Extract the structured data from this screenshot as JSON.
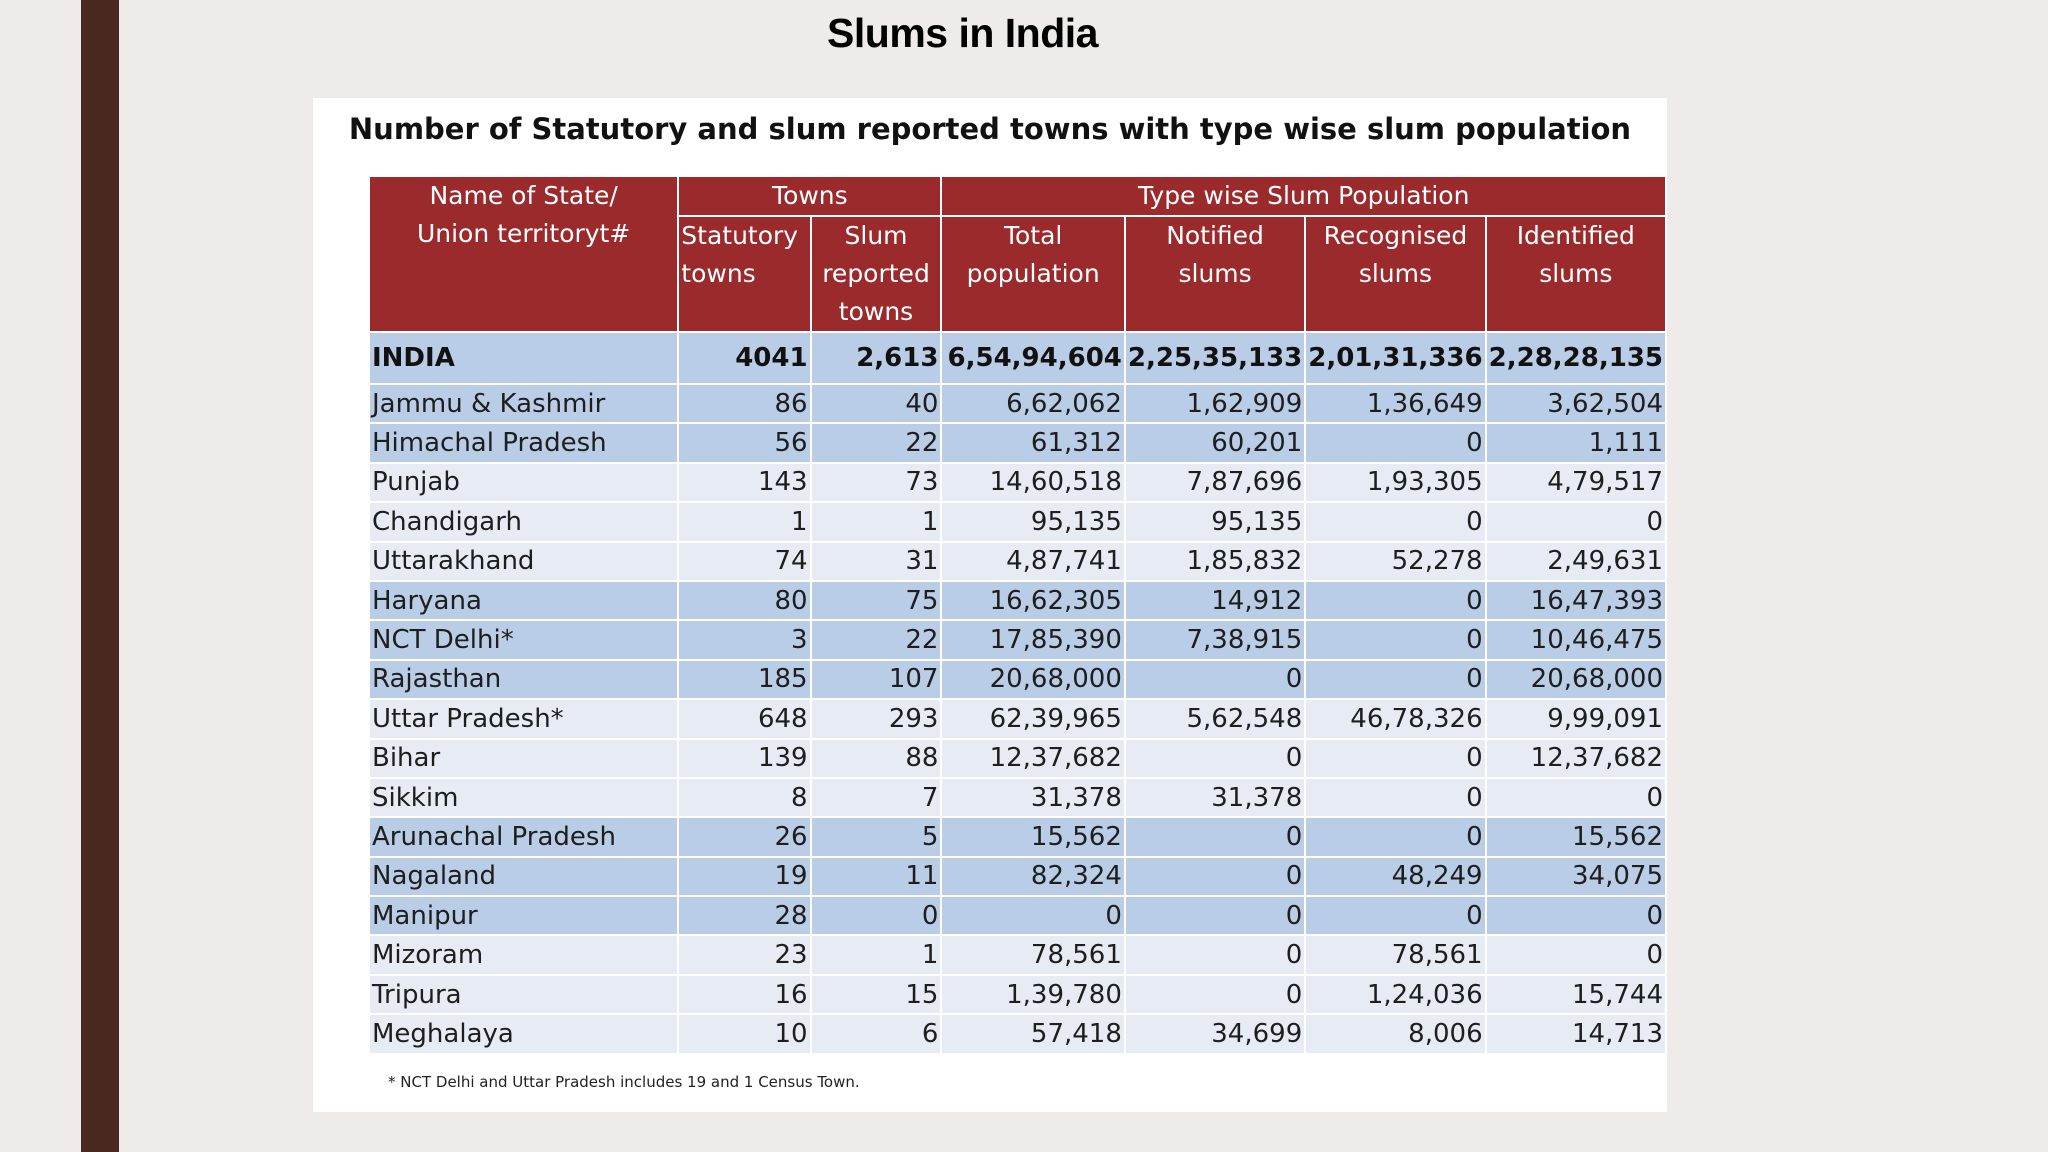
{
  "slide": {
    "title": "Slums in India"
  },
  "table": {
    "title": "Number of Statutory and slum reported towns with type wise slum population",
    "header": {
      "name_col": "Name of State/ Union territoryt#",
      "group_towns": "Towns",
      "group_slum": "Type wise Slum Population",
      "statutory": "Statutory towns",
      "slum_reported": "Slum reported towns",
      "total": "Total population",
      "notified": "Notified slums",
      "recognised": "Recognised slums",
      "identified": "Identified slums"
    },
    "rows": [
      {
        "name": "INDIA",
        "statutory": "4041",
        "slum_reported": "2,613",
        "total": "6,54,94,604",
        "notified": "2,25,35,133",
        "recognised": "2,01,31,336",
        "identified": "2,28,28,135",
        "style": "india"
      },
      {
        "name": "Jammu & Kashmir",
        "statutory": "86",
        "slum_reported": "40",
        "total": "6,62,062",
        "notified": "1,62,909",
        "recognised": "1,36,649",
        "identified": "3,62,504",
        "style": "blue"
      },
      {
        "name": "Himachal Pradesh",
        "statutory": "56",
        "slum_reported": "22",
        "total": "61,312",
        "notified": "60,201",
        "recognised": "0",
        "identified": "1,111",
        "style": "blue"
      },
      {
        "name": "Punjab",
        "statutory": "143",
        "slum_reported": "73",
        "total": "14,60,518",
        "notified": "7,87,696",
        "recognised": "1,93,305",
        "identified": "4,79,517",
        "style": "light"
      },
      {
        "name": "Chandigarh",
        "statutory": "1",
        "slum_reported": "1",
        "total": "95,135",
        "notified": "95,135",
        "recognised": "0",
        "identified": "0",
        "style": "light"
      },
      {
        "name": "Uttarakhand",
        "statutory": "74",
        "slum_reported": "31",
        "total": "4,87,741",
        "notified": "1,85,832",
        "recognised": "52,278",
        "identified": "2,49,631",
        "style": "light"
      },
      {
        "name": "Haryana",
        "statutory": "80",
        "slum_reported": "75",
        "total": "16,62,305",
        "notified": "14,912",
        "recognised": "0",
        "identified": "16,47,393",
        "style": "blue"
      },
      {
        "name": "NCT Delhi*",
        "statutory": "3",
        "slum_reported": "22",
        "total": "17,85,390",
        "notified": "7,38,915",
        "recognised": "0",
        "identified": "10,46,475",
        "style": "blue"
      },
      {
        "name": "Rajasthan",
        "statutory": "185",
        "slum_reported": "107",
        "total": "20,68,000",
        "notified": "0",
        "recognised": "0",
        "identified": "20,68,000",
        "style": "blue"
      },
      {
        "name": "Uttar Pradesh*",
        "statutory": "648",
        "slum_reported": "293",
        "total": "62,39,965",
        "notified": "5,62,548",
        "recognised": "46,78,326",
        "identified": "9,99,091",
        "style": "light"
      },
      {
        "name": "Bihar",
        "statutory": "139",
        "slum_reported": "88",
        "total": "12,37,682",
        "notified": "0",
        "recognised": "0",
        "identified": "12,37,682",
        "style": "light"
      },
      {
        "name": "Sikkim",
        "statutory": "8",
        "slum_reported": "7",
        "total": "31,378",
        "notified": "31,378",
        "recognised": "0",
        "identified": "0",
        "style": "light"
      },
      {
        "name": "Arunachal Pradesh",
        "statutory": "26",
        "slum_reported": "5",
        "total": "15,562",
        "notified": "0",
        "recognised": "0",
        "identified": "15,562",
        "style": "blue"
      },
      {
        "name": "Nagaland",
        "statutory": "19",
        "slum_reported": "11",
        "total": "82,324",
        "notified": "0",
        "recognised": "48,249",
        "identified": "34,075",
        "style": "blue"
      },
      {
        "name": "Manipur",
        "statutory": "28",
        "slum_reported": "0",
        "total": "0",
        "notified": "0",
        "recognised": "0",
        "identified": "0",
        "style": "blue"
      },
      {
        "name": "Mizoram",
        "statutory": "23",
        "slum_reported": "1",
        "total": "78,561",
        "notified": "0",
        "recognised": "78,561",
        "identified": "0",
        "style": "light"
      },
      {
        "name": "Tripura",
        "statutory": "16",
        "slum_reported": "15",
        "total": "1,39,780",
        "notified": "0",
        "recognised": "1,24,036",
        "identified": "15,744",
        "style": "light"
      },
      {
        "name": "Meghalaya",
        "statutory": "10",
        "slum_reported": "6",
        "total": "57,418",
        "notified": "34,699",
        "recognised": "8,006",
        "identified": "14,713",
        "style": "light"
      }
    ],
    "footnote": "* NCT Delhi and Uttar Pradesh includes 19 and 1 Census Town."
  },
  "colors": {
    "header_bg": "#9b2a2c",
    "row_blue": "#b9cde6",
    "row_light": "#e7ecf4",
    "left_bar": "#4a2820"
  }
}
